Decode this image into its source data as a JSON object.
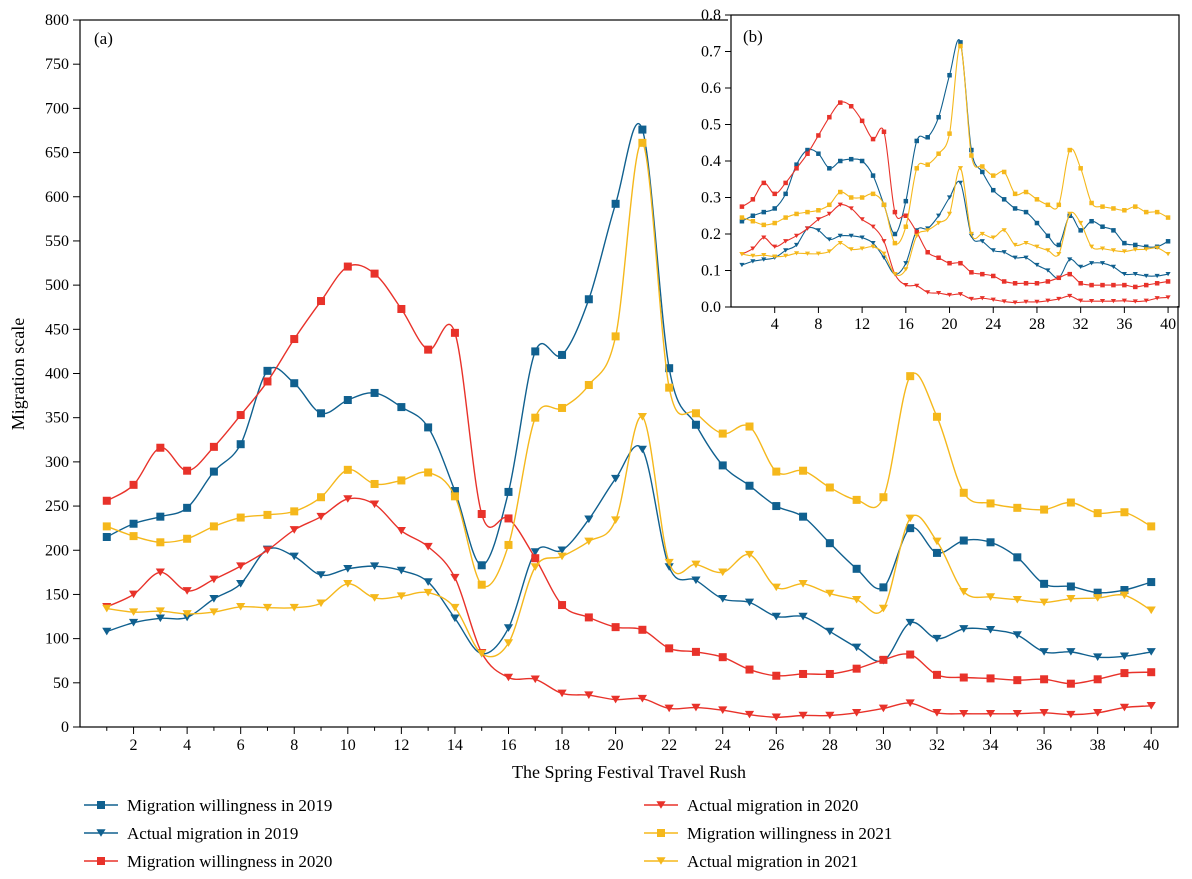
{
  "chart_data": [
    {
      "type": "line",
      "panel_label": "(a)",
      "xlabel": "The Spring Festival Travel Rush",
      "ylabel": "Migration scale",
      "xlim": [
        0,
        41
      ],
      "ylim": [
        0,
        800
      ],
      "xticks": [
        2,
        4,
        6,
        8,
        10,
        12,
        14,
        16,
        18,
        20,
        22,
        24,
        26,
        28,
        30,
        32,
        34,
        36,
        38,
        40
      ],
      "yticks": [
        0,
        50,
        100,
        150,
        200,
        250,
        300,
        350,
        400,
        450,
        500,
        550,
        600,
        650,
        700,
        750,
        800
      ],
      "x": [
        1,
        2,
        3,
        4,
        5,
        6,
        7,
        8,
        9,
        10,
        11,
        12,
        13,
        14,
        15,
        16,
        17,
        18,
        19,
        20,
        21,
        22,
        23,
        24,
        25,
        26,
        27,
        28,
        29,
        30,
        31,
        32,
        33,
        34,
        35,
        36,
        37,
        38,
        39,
        40
      ],
      "series": [
        {
          "name": "Migration willingness in 2019",
          "color": "#10608f",
          "marker": "square",
          "values": [
            215,
            230,
            238,
            248,
            289,
            320,
            403,
            389,
            355,
            370,
            378,
            362,
            339,
            267,
            183,
            266,
            425,
            421,
            484,
            592,
            676,
            406,
            342,
            296,
            273,
            250,
            238,
            208,
            179,
            158,
            225,
            197,
            211,
            209,
            192,
            162,
            159,
            152,
            155,
            164
          ]
        },
        {
          "name": "Actual migration in 2019",
          "color": "#10608f",
          "marker": "triangle-down",
          "values": [
            108,
            118,
            123,
            124,
            145,
            162,
            201,
            193,
            172,
            179,
            182,
            177,
            164,
            123,
            83,
            112,
            198,
            200,
            235,
            281,
            314,
            181,
            166,
            145,
            141,
            125,
            125,
            108,
            90,
            75,
            118,
            100,
            111,
            110,
            104,
            85,
            85,
            79,
            80,
            85
          ]
        },
        {
          "name": "Migration willingness in 2020",
          "color": "#e8322a",
          "marker": "square",
          "values": [
            256,
            274,
            316,
            290,
            317,
            353,
            391,
            439,
            482,
            521,
            513,
            473,
            427,
            446,
            241,
            236,
            191,
            138,
            124,
            113,
            110,
            89,
            85,
            79,
            65,
            58,
            60,
            60,
            66,
            76,
            82,
            59,
            56,
            55,
            53,
            54,
            49,
            54,
            61,
            62
          ]
        },
        {
          "name": "Actual migration in 2020",
          "color": "#e8322a",
          "marker": "triangle-down",
          "values": [
            136,
            150,
            175,
            154,
            167,
            182,
            200,
            223,
            238,
            258,
            252,
            222,
            204,
            169,
            84,
            56,
            54,
            38,
            36,
            31,
            32,
            21,
            22,
            19,
            14,
            11,
            13,
            13,
            16,
            21,
            27,
            16,
            15,
            15,
            15,
            16,
            14,
            16,
            22,
            24
          ]
        },
        {
          "name": "Migration willingness in 2021",
          "color": "#f5b81c",
          "marker": "square",
          "values": [
            227,
            216,
            209,
            213,
            227,
            237,
            240,
            244,
            260,
            291,
            275,
            279,
            288,
            261,
            161,
            206,
            350,
            361,
            387,
            442,
            661,
            384,
            355,
            332,
            340,
            289,
            290,
            271,
            257,
            260,
            397,
            351,
            265,
            253,
            248,
            246,
            254,
            242,
            243,
            227
          ]
        },
        {
          "name": "Actual migration in 2021",
          "color": "#f5b81c",
          "marker": "triangle-down",
          "values": [
            134,
            130,
            131,
            128,
            130,
            136,
            135,
            135,
            140,
            162,
            146,
            148,
            152,
            135,
            83,
            95,
            181,
            193,
            210,
            234,
            351,
            186,
            184,
            175,
            195,
            158,
            162,
            151,
            144,
            134,
            236,
            210,
            153,
            147,
            144,
            141,
            145,
            146,
            149,
            132
          ]
        }
      ],
      "legend_position": "bottom"
    },
    {
      "type": "line",
      "panel_label": "(b)",
      "xlim": [
        0,
        41
      ],
      "ylim": [
        0,
        0.8
      ],
      "xticks": [
        4,
        8,
        12,
        16,
        20,
        24,
        28,
        32,
        36,
        40
      ],
      "yticks": [
        0.0,
        0.1,
        0.2,
        0.3,
        0.4,
        0.5,
        0.6,
        0.7,
        0.8
      ],
      "ytick_labels": [
        "0.0",
        "0.1",
        "0.2",
        "0.3",
        "0.4",
        "0.5",
        "0.6",
        "0.7",
        "0.8"
      ],
      "x": [
        1,
        2,
        3,
        4,
        5,
        6,
        7,
        8,
        9,
        10,
        11,
        12,
        13,
        14,
        15,
        16,
        17,
        18,
        19,
        20,
        21,
        22,
        23,
        24,
        25,
        26,
        27,
        28,
        29,
        30,
        31,
        32,
        33,
        34,
        35,
        36,
        37,
        38,
        39,
        40
      ],
      "series": [
        {
          "color": "#10608f",
          "marker": "square",
          "values": [
            0.235,
            0.25,
            0.26,
            0.27,
            0.31,
            0.39,
            0.43,
            0.42,
            0.38,
            0.4,
            0.405,
            0.4,
            0.36,
            0.28,
            0.2,
            0.29,
            0.455,
            0.465,
            0.52,
            0.635,
            0.725,
            0.43,
            0.37,
            0.32,
            0.295,
            0.27,
            0.26,
            0.23,
            0.195,
            0.17,
            0.25,
            0.21,
            0.235,
            0.22,
            0.21,
            0.175,
            0.17,
            0.165,
            0.165,
            0.18
          ]
        },
        {
          "color": "#10608f",
          "marker": "triangle-down",
          "values": [
            0.115,
            0.125,
            0.13,
            0.135,
            0.155,
            0.17,
            0.215,
            0.21,
            0.185,
            0.195,
            0.195,
            0.19,
            0.175,
            0.135,
            0.09,
            0.12,
            0.21,
            0.215,
            0.25,
            0.3,
            0.34,
            0.195,
            0.18,
            0.155,
            0.15,
            0.135,
            0.135,
            0.115,
            0.1,
            0.08,
            0.13,
            0.11,
            0.12,
            0.12,
            0.11,
            0.09,
            0.09,
            0.085,
            0.085,
            0.09
          ]
        },
        {
          "color": "#e8322a",
          "marker": "square",
          "values": [
            0.275,
            0.295,
            0.34,
            0.31,
            0.34,
            0.38,
            0.42,
            0.47,
            0.52,
            0.56,
            0.55,
            0.51,
            0.46,
            0.48,
            0.26,
            0.25,
            0.205,
            0.15,
            0.135,
            0.12,
            0.12,
            0.095,
            0.09,
            0.085,
            0.07,
            0.065,
            0.065,
            0.065,
            0.07,
            0.08,
            0.09,
            0.065,
            0.06,
            0.06,
            0.06,
            0.06,
            0.055,
            0.06,
            0.065,
            0.07
          ]
        },
        {
          "color": "#e8322a",
          "marker": "triangle-down",
          "values": [
            0.145,
            0.16,
            0.19,
            0.165,
            0.18,
            0.195,
            0.215,
            0.24,
            0.255,
            0.28,
            0.27,
            0.24,
            0.22,
            0.18,
            0.09,
            0.06,
            0.058,
            0.04,
            0.038,
            0.033,
            0.035,
            0.022,
            0.024,
            0.02,
            0.015,
            0.012,
            0.014,
            0.014,
            0.017,
            0.022,
            0.03,
            0.017,
            0.016,
            0.016,
            0.016,
            0.017,
            0.015,
            0.017,
            0.024,
            0.026
          ]
        },
        {
          "color": "#f5b81c",
          "marker": "square",
          "values": [
            0.245,
            0.235,
            0.225,
            0.23,
            0.245,
            0.255,
            0.26,
            0.265,
            0.28,
            0.315,
            0.3,
            0.3,
            0.31,
            0.28,
            0.175,
            0.22,
            0.38,
            0.39,
            0.42,
            0.475,
            0.715,
            0.415,
            0.385,
            0.36,
            0.37,
            0.31,
            0.315,
            0.295,
            0.28,
            0.28,
            0.43,
            0.38,
            0.285,
            0.275,
            0.27,
            0.265,
            0.275,
            0.26,
            0.26,
            0.245
          ]
        },
        {
          "color": "#f5b81c",
          "marker": "triangle-down",
          "values": [
            0.145,
            0.14,
            0.142,
            0.138,
            0.14,
            0.147,
            0.146,
            0.146,
            0.152,
            0.175,
            0.158,
            0.16,
            0.165,
            0.146,
            0.09,
            0.103,
            0.195,
            0.21,
            0.23,
            0.255,
            0.38,
            0.2,
            0.2,
            0.19,
            0.21,
            0.17,
            0.175,
            0.165,
            0.155,
            0.145,
            0.255,
            0.23,
            0.165,
            0.16,
            0.155,
            0.152,
            0.157,
            0.158,
            0.162,
            0.145
          ]
        }
      ]
    }
  ]
}
